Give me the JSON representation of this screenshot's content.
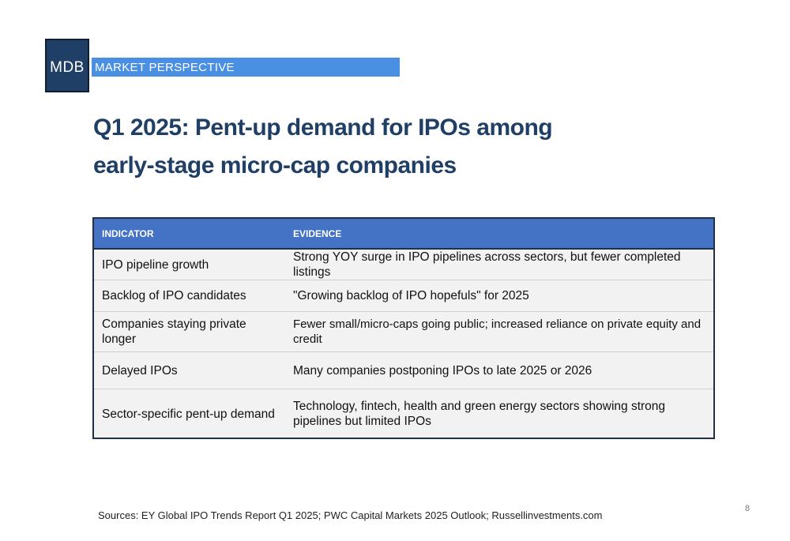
{
  "header": {
    "logo_text": "MDB",
    "banner_text": "MARKET PERSPECTIVE"
  },
  "title": {
    "line1": "Q1 2025: Pent-up demand for IPOs among",
    "line2": "early-stage micro-cap companies"
  },
  "table": {
    "columns": [
      "INDICATOR",
      "EVIDENCE"
    ],
    "rows": [
      {
        "indicator": "IPO pipeline growth",
        "evidence": "Strong YOY surge in IPO pipelines across sectors, but fewer completed listings"
      },
      {
        "indicator": "Backlog of IPO candidates",
        "evidence": "\"Growing backlog of IPO hopefuls\" for 2025"
      },
      {
        "indicator": "Companies staying private longer",
        "evidence": "Fewer small/micro-caps going public; increased reliance on private equity and credit"
      },
      {
        "indicator": "Delayed IPOs",
        "evidence": "Many companies postponing IPOs to late 2025 or 2026"
      },
      {
        "indicator": "Sector-specific pent-up demand",
        "evidence": "Technology, fintech, health and green energy sectors showing strong pipelines but limited IPOs"
      }
    ]
  },
  "footer": {
    "sources": "Sources: EY Global IPO Trends Report Q1 2025; PWC Capital Markets 2025 Outlook; Russellinvestments.com",
    "page_number": "8"
  },
  "colors": {
    "brand_navy": "#1f3f66",
    "banner_blue": "#4a90e2",
    "table_header": "#4472c4"
  }
}
